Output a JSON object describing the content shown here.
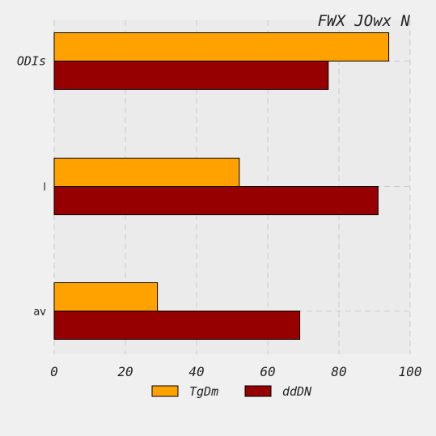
{
  "chart_data": {
    "type": "bar",
    "orientation": "horizontal",
    "title": "FWX JOwx N",
    "xlabel": "",
    "ylabel": "",
    "categories": [
      "ODIs",
      "l",
      "av"
    ],
    "series": [
      {
        "name": "TgDm",
        "values": [
          94,
          52,
          29
        ],
        "color": "#ffa200"
      },
      {
        "name": "ddDN",
        "values": [
          77,
          91,
          69
        ],
        "color": "#960000"
      }
    ],
    "xlim": [
      0,
      100
    ],
    "xticks": [
      "0",
      "20",
      "40",
      "60",
      "80",
      "100"
    ],
    "grid": true,
    "legend_position": "bottom-center"
  }
}
